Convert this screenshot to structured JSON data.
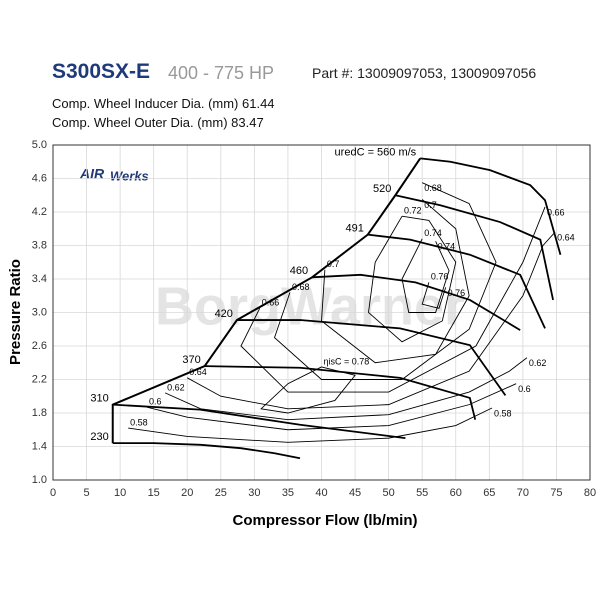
{
  "header": {
    "model": "S300SX-E",
    "power": "400 - 775 HP",
    "part": "Part #: 13009097053, 13009097056",
    "inducer": "Comp. Wheel Inducer Dia. (mm) 61.44",
    "outer": "Comp. Wheel Outer Dia. (mm) 83.47",
    "logo_a": "AIR",
    "logo_b": "Werks",
    "watermark": "BorgWarner"
  },
  "chart_data": {
    "type": "line",
    "x_label": "Compressor Flow (lb/min)",
    "y_label": "Pressure Ratio",
    "xlim": [
      0,
      80
    ],
    "xticks": [
      0,
      5,
      10,
      15,
      20,
      25,
      30,
      35,
      40,
      45,
      50,
      55,
      60,
      65,
      70,
      75,
      80
    ],
    "ylim": [
      1,
      5
    ],
    "yticks": [
      {
        "value": 1,
        "label": "1.0"
      },
      1.4,
      1.8,
      2.2,
      2.6,
      {
        "value": 3,
        "label": "3.0"
      },
      3.4,
      3.8,
      4.2,
      4.6,
      {
        "value": 5,
        "label": "5.0"
      }
    ],
    "grid": true,
    "series": [
      {
        "kind": "surge",
        "color": "#000000",
        "x": [
          8.9,
          8.9,
          22.6,
          27.4,
          38.6,
          46.9,
          51,
          54.7
        ],
        "values": [
          1.44,
          1.9,
          2.36,
          2.91,
          3.42,
          3.93,
          4.4,
          4.84
        ]
      },
      {
        "name": "230",
        "kind": "speed",
        "color": "#000000",
        "x": [
          8.9,
          15,
          22,
          28,
          33,
          36.8
        ],
        "values": [
          1.44,
          1.44,
          1.42,
          1.38,
          1.32,
          1.26
        ]
      },
      {
        "name": "310",
        "kind": "speed",
        "color": "#000000",
        "x": [
          8.9,
          21.9,
          36.8,
          52.5
        ],
        "values": [
          1.9,
          1.84,
          1.66,
          1.5
        ]
      },
      {
        "name": "370",
        "kind": "speed",
        "color": "#000000",
        "x": [
          22.6,
          36.8,
          51.7,
          62.1,
          62.9
        ],
        "values": [
          2.36,
          2.34,
          2.22,
          1.98,
          1.72
        ]
      },
      {
        "name": "420",
        "kind": "speed",
        "color": "#000000",
        "x": [
          27.4,
          36.8,
          51.7,
          62.1,
          67.4
        ],
        "values": [
          2.91,
          2.91,
          2.81,
          2.61,
          2.01
        ]
      },
      {
        "name": "460",
        "kind": "speed",
        "color": "#000000",
        "x": [
          38.6,
          45.8,
          54,
          62.1,
          69.6
        ],
        "values": [
          3.42,
          3.45,
          3.36,
          3.15,
          2.79
        ]
      },
      {
        "name": "491",
        "kind": "speed",
        "color": "#000000",
        "x": [
          46.9,
          53.2,
          62.1,
          69.6,
          73.3
        ],
        "values": [
          3.93,
          3.87,
          3.69,
          3.45,
          2.81
        ]
      },
      {
        "name": "520",
        "kind": "speed",
        "color": "#000000",
        "x": [
          51,
          57.7,
          66.6,
          72.6,
          74.5
        ],
        "values": [
          4.4,
          4.28,
          4.08,
          3.87,
          3.15
        ]
      },
      {
        "name": "uredC = 560 m/s",
        "kind": "speed",
        "color": "#000000",
        "x": [
          54.7,
          59.2,
          65.1,
          71.1,
          73.3,
          75.6
        ],
        "values": [
          4.84,
          4.8,
          4.7,
          4.52,
          4.34,
          3.69
        ]
      },
      {
        "name": "0.58",
        "kind": "efficiency",
        "color": "#000000",
        "x": [
          11.2,
          20,
          35,
          50,
          60,
          65.4
        ],
        "values": [
          1.62,
          1.52,
          1.45,
          1.5,
          1.65,
          1.86
        ]
      },
      {
        "name": "0.6",
        "kind": "efficiency",
        "color": "#000000",
        "x": [
          14,
          20,
          35,
          50,
          62,
          69
        ],
        "values": [
          1.87,
          1.75,
          1.6,
          1.65,
          1.9,
          2.15
        ]
      },
      {
        "name": "0.62",
        "kind": "efficiency",
        "color": "#000000",
        "x": [
          16.7,
          22,
          35,
          50,
          62,
          68,
          70.6
        ],
        "values": [
          2.04,
          1.85,
          1.72,
          1.78,
          2.05,
          2.3,
          2.46
        ]
      },
      {
        "name": "0.64",
        "kind": "efficiency",
        "color": "#000000",
        "x": [
          20,
          25,
          35,
          50,
          62,
          70,
          73,
          74.8
        ],
        "values": [
          2.22,
          2,
          1.85,
          1.9,
          2.3,
          3.2,
          3.8,
          3.96
        ]
      },
      {
        "name": "0.66",
        "kind": "efficiency",
        "color": "#000000",
        "x": [
          30.8,
          28,
          35,
          50,
          63,
          70,
          73.3
        ],
        "values": [
          3.05,
          2.6,
          2.05,
          2.05,
          2.6,
          3.6,
          4.26
        ]
      },
      {
        "name": "0.68",
        "kind": "efficiency",
        "color": "#000000",
        "x": [
          35.3,
          33,
          40,
          52,
          62,
          66,
          62,
          55
        ],
        "values": [
          3.24,
          2.7,
          2.2,
          2.2,
          2.8,
          3.6,
          4.3,
          4.55
        ]
      },
      {
        "name": "0.7",
        "kind": "efficiency",
        "color": "#000000",
        "x": [
          40.5,
          40,
          48,
          57,
          62,
          60,
          55
        ],
        "values": [
          3.51,
          2.9,
          2.4,
          2.5,
          3.2,
          4,
          4.35
        ]
      },
      {
        "name": "0.72",
        "kind": "efficiency",
        "color": "#000000",
        "x": [
          52,
          48,
          47,
          52,
          58,
          60,
          56,
          52
        ],
        "values": [
          4.15,
          3.6,
          3,
          2.65,
          2.9,
          3.6,
          4.1,
          4.15
        ]
      },
      {
        "name": "0.74",
        "kind": "efficiency",
        "color": "#000000",
        "x": [
          55,
          52,
          53,
          57,
          59,
          57
        ],
        "values": [
          3.88,
          3.4,
          3,
          3,
          3.5,
          3.85
        ]
      },
      {
        "name": "0.76",
        "kind": "efficiency",
        "color": "#000000",
        "x": [
          56,
          55,
          57.5,
          58.5
        ],
        "values": [
          3.36,
          3.1,
          3.05,
          3.3
        ]
      },
      {
        "name": "ηisC = 0.78",
        "kind": "efficiency",
        "color": "#000000",
        "x": [
          40,
          35,
          31,
          35,
          42,
          45,
          40
        ],
        "values": [
          2.35,
          2.15,
          1.85,
          1.8,
          1.95,
          2.25,
          2.35
        ]
      }
    ]
  }
}
